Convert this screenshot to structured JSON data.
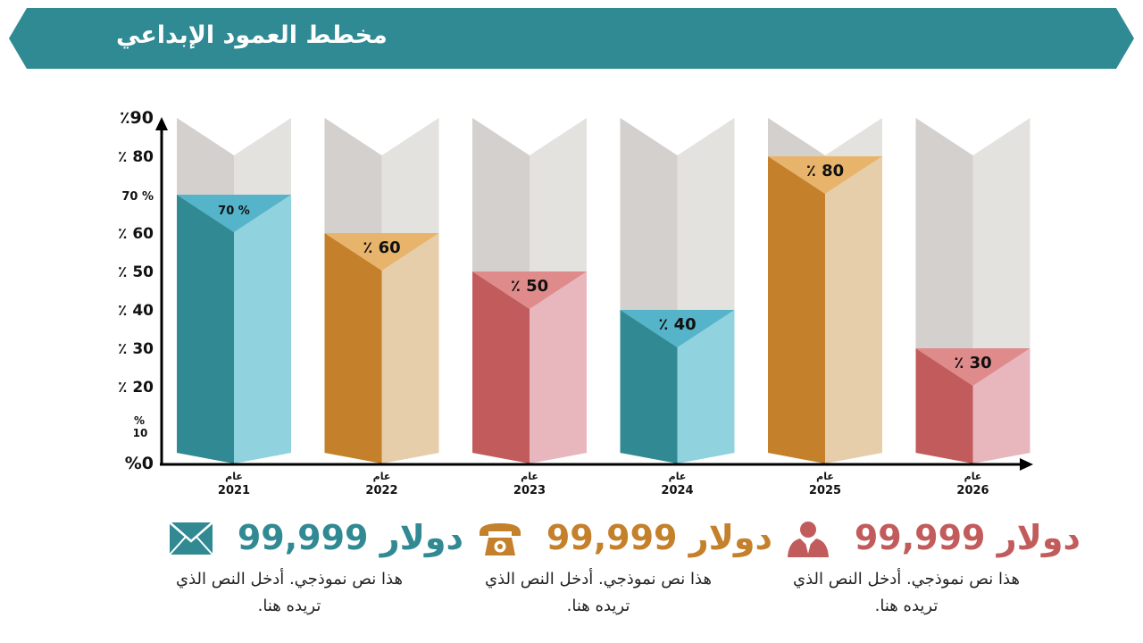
{
  "header": {
    "title": "مخطط العمود الإبداعي",
    "band_color": "#2f8a93"
  },
  "chart_data": {
    "type": "bar",
    "title": "مخطط العمود الإبداعي",
    "categories": [
      "عام 2021",
      "عام 2022",
      "عام 2023",
      "عام 2024",
      "عام 2025",
      "عام 2026"
    ],
    "category_word": "عام",
    "years": [
      "2021",
      "2022",
      "2023",
      "2024",
      "2025",
      "2026"
    ],
    "values": [
      70,
      60,
      50,
      40,
      80,
      30
    ],
    "data_labels": [
      "70 %",
      "٪ 60",
      "٪ 50",
      "٪ 40",
      "٪ 80",
      "٪ 30"
    ],
    "bar_colors": [
      "teal",
      "orange",
      "red",
      "teal",
      "orange",
      "red"
    ],
    "ylim": [
      0,
      90
    ],
    "yticks": [
      {
        "value": 0,
        "label": "%0"
      },
      {
        "value": 10,
        "label": "% 10"
      },
      {
        "value": 20,
        "label": "٪ 20"
      },
      {
        "value": 30,
        "label": "٪ 30"
      },
      {
        "value": 40,
        "label": "٪ 40"
      },
      {
        "value": 50,
        "label": "٪ 50"
      },
      {
        "value": 60,
        "label": "٪ 60"
      },
      {
        "value": 70,
        "label": "70 %"
      },
      {
        "value": 80,
        "label": "٪ 80"
      },
      {
        "value": 90,
        "label": "٪90"
      }
    ],
    "grid": false,
    "legend": "none"
  },
  "palette": {
    "teal": {
      "dark": "#318a93",
      "light": "#90d3de",
      "cap": "#55b4c9"
    },
    "orange": {
      "dark": "#c4802a",
      "light": "#e7ceaa",
      "cap": "#e8b46c"
    },
    "red": {
      "dark": "#c25c5c",
      "light": "#e7b7bd",
      "cap": "#e08b8b"
    },
    "gray": {
      "dark": "#d3d0cd",
      "light": "#e4e2df",
      "cap": "#dad7d4"
    }
  },
  "stats": [
    {
      "icon": "person-icon",
      "amount": "99,999 دولار",
      "text": "هذا نص نموذجي. أدخل النص الذي تريده هنا.",
      "color": "#c25c5c"
    },
    {
      "icon": "phone-icon",
      "amount": "99,999 دولار",
      "text": "هذا نص نموذجي. أدخل النص الذي تريده هنا.",
      "color": "#c4802a"
    },
    {
      "icon": "envelope-icon",
      "amount": "99,999 دولار",
      "text": "هذا نص نموذجي. أدخل النص الذي تريده هنا.",
      "color": "#318a93"
    }
  ]
}
